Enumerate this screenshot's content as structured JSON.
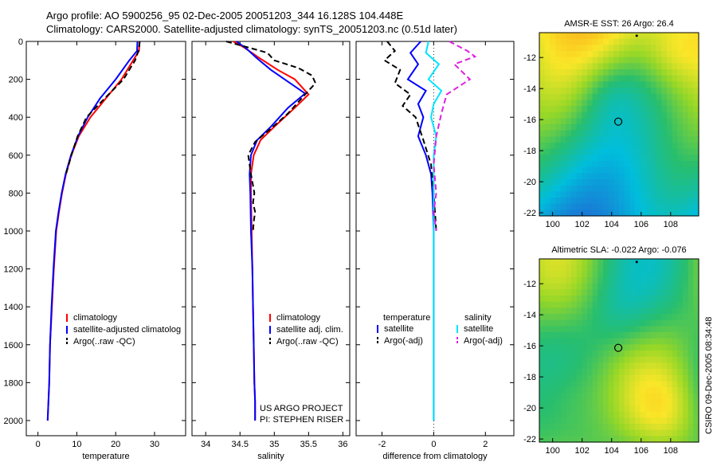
{
  "header": {
    "line1": "Argo profile: AO 5900256_95 02-Dec-2005 20051203_344 16.128S 104.448E",
    "line2": "Climatology: CARS2000. Satellite-adjusted climatology: synTS_20051203.nc (0.51d later)"
  },
  "credit": {
    "project": "US ARGO PROJECT",
    "pi": "PI: STEPHEN RISER",
    "vertical": "CSIRO 09-Dec-2005 08:34:48"
  },
  "colors": {
    "climatology": "#ff0000",
    "satellite": "#0000ff",
    "argo": "#000000",
    "salinity_satellite": "#00e5ff",
    "salinity_argo": "#e020e0"
  },
  "chart_data": [
    {
      "type": "line",
      "name": "temperature",
      "xlabel": "temperature",
      "ylabel": "",
      "xlim": [
        -3,
        38
      ],
      "ylim": [
        2080,
        0
      ],
      "xticks": [
        0,
        10,
        20,
        30
      ],
      "yticks": [
        0,
        200,
        400,
        600,
        800,
        1000,
        1200,
        1400,
        1600,
        1800,
        2000
      ],
      "legend": [
        "climatology",
        "satellite-adjusted climatology",
        "Argo(..raw -QC)"
      ],
      "legend_labels": [
        "climatology",
        "satellite-adjusted climatolog",
        "Argo(..raw -QC)"
      ],
      "series": [
        {
          "name": "climatology",
          "color": "#ff0000",
          "dash": "",
          "x": [
            26.1,
            26.0,
            24.5,
            21.5,
            17.5,
            13.5,
            10.5,
            8.6,
            7.2,
            6.2,
            5.4,
            4.7,
            4.1,
            3.6,
            3.1,
            2.9,
            2.7,
            2.5
          ],
          "y": [
            0,
            50,
            100,
            200,
            300,
            400,
            500,
            600,
            700,
            800,
            900,
            1000,
            1200,
            1400,
            1600,
            1800,
            1900,
            2000
          ]
        },
        {
          "name": "satellite-adjusted climatology",
          "color": "#0000ff",
          "dash": "",
          "x": [
            25.6,
            25.5,
            23.5,
            20.0,
            16.0,
            12.8,
            10.3,
            8.5,
            7.1,
            6.1,
            5.3,
            4.6,
            4.0,
            3.5,
            3.1,
            2.9,
            2.7,
            2.5
          ],
          "y": [
            0,
            50,
            100,
            200,
            300,
            400,
            500,
            600,
            700,
            800,
            900,
            1000,
            1200,
            1400,
            1600,
            1800,
            1900,
            2000
          ]
        },
        {
          "name": "Argo(..raw -QC)",
          "color": "#000000",
          "dash": "7,4",
          "x": [
            26.2,
            26.0,
            25.0,
            22.0,
            17.2,
            12.5,
            10.2,
            8.6,
            7.2
          ],
          "y": [
            0,
            40,
            100,
            200,
            300,
            400,
            500,
            600,
            700
          ]
        }
      ]
    },
    {
      "type": "line",
      "name": "salinity",
      "xlabel": "salinity",
      "ylabel": "",
      "xlim": [
        33.8,
        36.1
      ],
      "ylim": [
        2080,
        0
      ],
      "xticks": [
        34,
        34.5,
        35,
        35.5,
        36
      ],
      "legend": [
        "climatology",
        "satellite adj. clim.",
        "Argo(..raw -QC)"
      ],
      "series": [
        {
          "name": "climatology",
          "color": "#ff0000",
          "dash": "",
          "x": [
            34.4,
            34.55,
            34.75,
            35.05,
            35.3,
            35.5,
            35.3,
            35.0,
            34.8,
            34.7,
            34.66,
            34.66,
            34.67,
            34.68,
            34.69,
            34.7,
            34.71,
            34.72,
            34.72
          ],
          "y": [
            0,
            30,
            80,
            150,
            200,
            280,
            350,
            450,
            520,
            600,
            700,
            800,
            1000,
            1200,
            1400,
            1600,
            1800,
            1900,
            2000
          ]
        },
        {
          "name": "satellite adj. clim.",
          "color": "#0000ff",
          "dash": "",
          "x": [
            34.45,
            34.6,
            34.75,
            34.95,
            35.15,
            35.45,
            35.2,
            34.95,
            34.75,
            34.66,
            34.64,
            34.65,
            34.66,
            34.68,
            34.69,
            34.7,
            34.71,
            34.72,
            34.72
          ],
          "y": [
            0,
            40,
            90,
            150,
            200,
            275,
            350,
            450,
            520,
            600,
            700,
            800,
            1000,
            1200,
            1400,
            1600,
            1800,
            1900,
            2000
          ]
        },
        {
          "name": "Argo(..raw -QC)",
          "color": "#000000",
          "dash": "7,4",
          "x": [
            34.3,
            34.6,
            34.9,
            35.0,
            35.35,
            35.55,
            35.6,
            35.45,
            35.2,
            34.95,
            34.72,
            34.62,
            34.66,
            34.71,
            34.69,
            34.72,
            34.7,
            34.69
          ],
          "y": [
            0,
            30,
            60,
            100,
            140,
            180,
            220,
            280,
            380,
            460,
            530,
            600,
            700,
            800,
            850,
            900,
            950,
            1000
          ]
        }
      ]
    },
    {
      "type": "line",
      "name": "difference",
      "xlabel": "difference from climatology",
      "ylabel": "",
      "xlim": [
        -3,
        3.1
      ],
      "ylim": [
        2080,
        0
      ],
      "xticks": [
        -2,
        0,
        2
      ],
      "legend_temperature": "temperature",
      "legend_salinity": "salinity",
      "legend": [
        "satellite",
        "Argo(-adj)",
        "satellite",
        "Argo(-adj)"
      ],
      "series": [
        {
          "name": "temperature satellite",
          "color": "#0000ff",
          "dash": "",
          "x": [
            -0.5,
            -0.9,
            -0.6,
            -1.0,
            -0.3,
            -0.6,
            -0.4,
            -0.6,
            -0.3,
            -0.1,
            -0.05,
            0,
            0,
            0,
            0,
            0,
            0
          ],
          "y": [
            0,
            60,
            120,
            200,
            260,
            330,
            400,
            500,
            600,
            700,
            800,
            1000,
            1200,
            1400,
            1600,
            1800,
            2000
          ]
        },
        {
          "name": "temperature Argo(-adj)",
          "color": "#000000",
          "dash": "7,4",
          "x": [
            -1.8,
            -1.5,
            -1.9,
            -1.3,
            -1.5,
            -0.9,
            -1.2,
            -0.7,
            -0.4,
            -0.1,
            0,
            0.1
          ],
          "y": [
            0,
            50,
            100,
            150,
            220,
            280,
            340,
            400,
            520,
            650,
            800,
            1000
          ]
        },
        {
          "name": "salinity satellite",
          "color": "#00e5ff",
          "dash": "",
          "x": [
            -0.2,
            -0.3,
            0.2,
            -0.2,
            0.3,
            0.0,
            -0.1,
            0.1,
            0,
            0,
            0,
            0,
            0,
            0,
            0,
            0,
            0
          ],
          "y": [
            0,
            60,
            120,
            200,
            260,
            330,
            400,
            500,
            600,
            700,
            800,
            1000,
            1200,
            1400,
            1600,
            1800,
            2000
          ]
        },
        {
          "name": "salinity Argo(-adj)",
          "color": "#e020e0",
          "dash": "7,4",
          "x": [
            0.6,
            1.3,
            1.6,
            0.8,
            1.4,
            0.5,
            0.3,
            0.1,
            0.0,
            0.1,
            0.0,
            0.1
          ],
          "y": [
            0,
            50,
            80,
            120,
            200,
            280,
            380,
            500,
            650,
            800,
            900,
            1000
          ]
        }
      ]
    },
    {
      "type": "heatmap",
      "name": "sst_map",
      "title": "AMSR-E SST: 26 Argo: 26.4",
      "xlim": [
        99.1,
        109.9
      ],
      "ylim": [
        -22.2,
        -10.4
      ],
      "xticks": [
        100,
        102,
        104,
        106,
        108
      ],
      "yticks": [
        -12,
        -14,
        -16,
        -18,
        -20,
        -22
      ],
      "marker": {
        "lon": 104.45,
        "lat": -16.13
      }
    },
    {
      "type": "heatmap",
      "name": "sla_map",
      "title": "Altimetric SLA: -0.022 Argo: -0.076",
      "xlim": [
        99.1,
        109.9
      ],
      "ylim": [
        -22.2,
        -10.4
      ],
      "xticks": [
        100,
        102,
        104,
        106,
        108
      ],
      "yticks": [
        -12,
        -14,
        -16,
        -18,
        -20,
        -22
      ],
      "marker": {
        "lon": 104.45,
        "lat": -16.13
      }
    }
  ]
}
